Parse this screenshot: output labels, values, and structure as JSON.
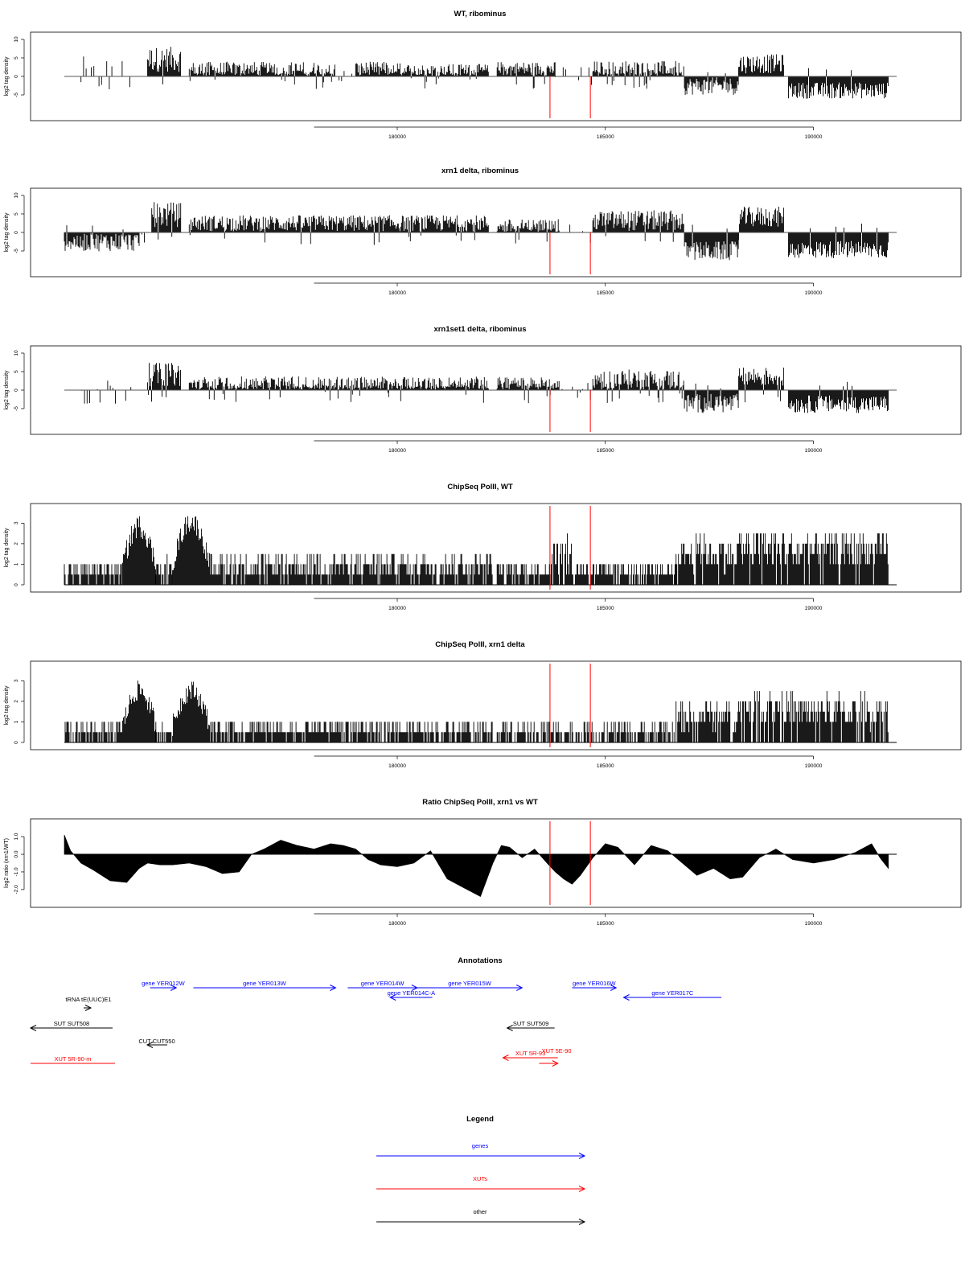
{
  "chart_data": [
    {
      "type": "bar",
      "title": "WT, ribominus",
      "ylabel": "log2 tag density",
      "xlim": [
        172000,
        192000
      ],
      "ylim": [
        -10,
        10
      ],
      "yticks": [
        "-5",
        "0",
        "5",
        "10"
      ],
      "xticks": [
        180000,
        185000,
        190000
      ],
      "xtick_labels": [
        "180000",
        "185000",
        "190000"
      ],
      "grid": false,
      "marker_lines_x": [
        183670,
        184640
      ],
      "marker_color": "#ff0000",
      "segments": [
        {
          "x": [
            172400,
            173800
          ],
          "kind": "sparse",
          "avg": 0.4,
          "amp": 5.0
        },
        {
          "x": [
            174000,
            174800
          ],
          "kind": "pos",
          "avg": 4.6,
          "amp": 3.4
        },
        {
          "x": [
            175000,
            178500
          ],
          "kind": "pos",
          "avg": 1.6,
          "amp": 2.4
        },
        {
          "x": [
            178600,
            179000
          ],
          "kind": "sparse",
          "avg": 0.3,
          "amp": 2.0
        },
        {
          "x": [
            179000,
            180200
          ],
          "kind": "pos",
          "avg": 1.8,
          "amp": 2.2
        },
        {
          "x": [
            180200,
            182200
          ],
          "kind": "pos",
          "avg": 1.4,
          "amp": 2.0
        },
        {
          "x": [
            182400,
            183800
          ],
          "kind": "pos",
          "avg": 2.0,
          "amp": 2.0
        },
        {
          "x": [
            183800,
            184700
          ],
          "kind": "sparse",
          "avg": 0.2,
          "amp": 3.0
        },
        {
          "x": [
            184700,
            186900
          ],
          "kind": "pos",
          "avg": 1.8,
          "amp": 2.4
        },
        {
          "x": [
            186900,
            188200
          ],
          "kind": "neg",
          "avg": -2.6,
          "amp": 2.4
        },
        {
          "x": [
            188200,
            189300
          ],
          "kind": "pos",
          "avg": 3.4,
          "amp": 2.6
        },
        {
          "x": [
            189400,
            191800
          ],
          "kind": "neg",
          "avg": -3.8,
          "amp": 2.2
        }
      ]
    },
    {
      "type": "bar",
      "title": "xrn1 delta, ribominus",
      "ylabel": "log2 tag density",
      "xlim": [
        172000,
        192000
      ],
      "ylim": [
        -10,
        10
      ],
      "yticks": [
        "-5",
        "0",
        "5",
        "10"
      ],
      "xticks": [
        180000,
        185000,
        190000
      ],
      "xtick_labels": [
        "180000",
        "185000",
        "190000"
      ],
      "grid": false,
      "marker_lines_x": [
        183670,
        184640
      ],
      "marker_color": "#ff0000",
      "segments": [
        {
          "x": [
            172000,
            173800
          ],
          "kind": "neg",
          "avg": -2.5,
          "amp": 2.6
        },
        {
          "x": [
            173800,
            174100
          ],
          "kind": "sparse",
          "avg": 0.5,
          "amp": 5.0
        },
        {
          "x": [
            174100,
            174800
          ],
          "kind": "pos",
          "avg": 4.8,
          "amp": 3.4
        },
        {
          "x": [
            175000,
            182200
          ],
          "kind": "pos",
          "avg": 2.5,
          "amp": 2.2
        },
        {
          "x": [
            182400,
            183900
          ],
          "kind": "pos",
          "avg": 1.6,
          "amp": 2.0
        },
        {
          "x": [
            183900,
            184700
          ],
          "kind": "sparse",
          "avg": -0.3,
          "amp": 4.0
        },
        {
          "x": [
            184700,
            186900
          ],
          "kind": "pos",
          "avg": 3.2,
          "amp": 2.8
        },
        {
          "x": [
            186900,
            188200
          ],
          "kind": "neg",
          "avg": -5.0,
          "amp": 2.6
        },
        {
          "x": [
            188200,
            189300
          ],
          "kind": "pos",
          "avg": 4.2,
          "amp": 2.8
        },
        {
          "x": [
            189400,
            191800
          ],
          "kind": "neg",
          "avg": -4.6,
          "amp": 2.4
        }
      ]
    },
    {
      "type": "bar",
      "title": "xrn1set1 delta, ribominus",
      "ylabel": "log2 tag density",
      "xlim": [
        172000,
        192000
      ],
      "ylim": [
        -10,
        10
      ],
      "yticks": [
        "-5",
        "0",
        "5",
        "10"
      ],
      "xticks": [
        180000,
        185000,
        190000
      ],
      "xtick_labels": [
        "180000",
        "185000",
        "190000"
      ],
      "grid": false,
      "marker_lines_x": [
        183670,
        184640
      ],
      "marker_color": "#ff0000",
      "segments": [
        {
          "x": [
            172300,
            173800
          ],
          "kind": "sparse",
          "avg": -0.5,
          "amp": 4.0
        },
        {
          "x": [
            174000,
            174800
          ],
          "kind": "pos",
          "avg": 4.2,
          "amp": 3.2
        },
        {
          "x": [
            175000,
            182200
          ],
          "kind": "pos",
          "avg": 1.5,
          "amp": 2.2
        },
        {
          "x": [
            182400,
            183900
          ],
          "kind": "pos",
          "avg": 1.6,
          "amp": 2.0
        },
        {
          "x": [
            183900,
            184700
          ],
          "kind": "sparse",
          "avg": 0.2,
          "amp": 3.0
        },
        {
          "x": [
            184700,
            186900
          ],
          "kind": "pos",
          "avg": 2.8,
          "amp": 2.8
        },
        {
          "x": [
            186900,
            188200
          ],
          "kind": "neg",
          "avg": -3.6,
          "amp": 2.6
        },
        {
          "x": [
            188200,
            189300
          ],
          "kind": "pos",
          "avg": 3.6,
          "amp": 2.6
        },
        {
          "x": [
            189400,
            191800
          ],
          "kind": "neg",
          "avg": -3.8,
          "amp": 2.4
        }
      ]
    },
    {
      "type": "bar",
      "title": "ChipSeq PolII, WT",
      "ylabel": "log2 tag density",
      "xlim": [
        172000,
        192000
      ],
      "ylim": [
        0,
        3.6
      ],
      "yticks": [
        "0",
        "1",
        "2",
        "3"
      ],
      "xticks": [
        180000,
        185000,
        190000
      ],
      "xtick_labels": [
        "180000",
        "185000",
        "190000"
      ],
      "grid": false,
      "marker_lines_x": [
        183670,
        184640
      ],
      "marker_color": "#ff0000",
      "segments": [
        {
          "x": [
            172000,
            173400
          ],
          "kind": "chip",
          "avg": 0.4,
          "amp": 1.2
        },
        {
          "x": [
            173400,
            174200
          ],
          "kind": "chippeak",
          "avg": 2.6,
          "amp": 1.1
        },
        {
          "x": [
            174200,
            174600
          ],
          "kind": "chip",
          "avg": 0.6,
          "amp": 1.2
        },
        {
          "x": [
            174600,
            175500
          ],
          "kind": "chippeak",
          "avg": 2.8,
          "amp": 1.0
        },
        {
          "x": [
            175500,
            182300
          ],
          "kind": "chip",
          "avg": 0.7,
          "amp": 1.2
        },
        {
          "x": [
            182400,
            183700
          ],
          "kind": "chip",
          "avg": 0.5,
          "amp": 1.0
        },
        {
          "x": [
            183700,
            184200
          ],
          "kind": "chip",
          "avg": 1.0,
          "amp": 2.0
        },
        {
          "x": [
            184200,
            186700
          ],
          "kind": "chip",
          "avg": 0.5,
          "amp": 1.0
        },
        {
          "x": [
            186700,
            188200
          ],
          "kind": "chip",
          "avg": 1.2,
          "amp": 1.6
        },
        {
          "x": [
            188200,
            189300
          ],
          "kind": "chip",
          "avg": 1.4,
          "amp": 1.8
        },
        {
          "x": [
            189300,
            191800
          ],
          "kind": "chip",
          "avg": 1.3,
          "amp": 1.8
        }
      ]
    },
    {
      "type": "bar",
      "title": "ChipSeq PolII, xrn1 delta",
      "ylabel": "log2 tag density",
      "xlim": [
        172000,
        192000
      ],
      "ylim": [
        0,
        3.6
      ],
      "yticks": [
        "0",
        "1",
        "2",
        "3"
      ],
      "xticks": [
        180000,
        185000,
        190000
      ],
      "xtick_labels": [
        "180000",
        "185000",
        "190000"
      ],
      "grid": false,
      "marker_lines_x": [
        183670,
        184640
      ],
      "marker_color": "#ff0000",
      "segments": [
        {
          "x": [
            172000,
            173400
          ],
          "kind": "chip",
          "avg": 0.3,
          "amp": 1.0
        },
        {
          "x": [
            173400,
            174200
          ],
          "kind": "chippeak",
          "avg": 2.3,
          "amp": 1.0
        },
        {
          "x": [
            174200,
            174600
          ],
          "kind": "chip",
          "avg": 0.4,
          "amp": 0.8
        },
        {
          "x": [
            174600,
            175500
          ],
          "kind": "chippeak",
          "avg": 2.3,
          "amp": 1.0
        },
        {
          "x": [
            175500,
            182300
          ],
          "kind": "chip",
          "avg": 0.5,
          "amp": 1.0
        },
        {
          "x": [
            182400,
            186700
          ],
          "kind": "chip",
          "avg": 0.3,
          "amp": 1.0
        },
        {
          "x": [
            186700,
            188200
          ],
          "kind": "chip",
          "avg": 1.0,
          "amp": 1.4
        },
        {
          "x": [
            188200,
            189300
          ],
          "kind": "chip",
          "avg": 1.4,
          "amp": 1.6
        },
        {
          "x": [
            189300,
            191800
          ],
          "kind": "chip",
          "avg": 1.2,
          "amp": 1.6
        }
      ]
    },
    {
      "type": "area",
      "title": "Ratio ChipSeq PolII, xrn1 vs WT",
      "ylabel": "log2 ratio (xrn1/WT)",
      "xlim": [
        172000,
        192000
      ],
      "ylim": [
        -2.6,
        1.6
      ],
      "yticks": [
        "-2.0",
        "-1.0",
        "0.0",
        "1.0"
      ],
      "xticks": [
        180000,
        185000,
        190000
      ],
      "xtick_labels": [
        "180000",
        "185000",
        "190000"
      ],
      "grid": false,
      "marker_lines_x": [
        183670,
        184640
      ],
      "marker_color": "#ff0000",
      "x": [
        172000,
        172150,
        172400,
        172700,
        173100,
        173500,
        173800,
        174000,
        174300,
        174600,
        175000,
        175400,
        175800,
        176200,
        176500,
        176800,
        177200,
        177600,
        178000,
        178400,
        178700,
        179000,
        179300,
        179600,
        180000,
        180400,
        180800,
        181200,
        181600,
        182000,
        182300,
        182500,
        182700,
        183000,
        183300,
        183600,
        183800,
        184000,
        184200,
        184400,
        184700,
        185000,
        185300,
        185700,
        186100,
        186500,
        186900,
        187200,
        187600,
        188000,
        188300,
        188700,
        189100,
        189500,
        190000,
        190500,
        191000,
        191400,
        191600,
        191800
      ],
      "values": [
        1.1,
        0.2,
        -0.5,
        -0.9,
        -1.5,
        -1.6,
        -0.8,
        -0.5,
        -0.6,
        -0.6,
        -0.5,
        -0.7,
        -1.1,
        -1.0,
        0.0,
        0.3,
        0.8,
        0.5,
        0.3,
        0.6,
        0.5,
        0.3,
        -0.3,
        -0.6,
        -0.7,
        -0.5,
        0.2,
        -1.4,
        -1.9,
        -2.4,
        -0.5,
        0.5,
        0.4,
        -0.2,
        0.3,
        -0.5,
        -1.0,
        -1.4,
        -1.7,
        -1.2,
        -0.2,
        0.6,
        0.4,
        -0.6,
        0.5,
        0.2,
        -0.6,
        -1.2,
        -0.8,
        -1.4,
        -1.3,
        -0.2,
        0.3,
        -0.3,
        -0.5,
        -0.3,
        0.1,
        0.6,
        -0.2,
        -0.8
      ]
    }
  ],
  "annotations": {
    "title": "Annotations",
    "xlim": [
      172000,
      192000
    ],
    "items": [
      {
        "label": "gene YER012W",
        "x1": 174060,
        "x2": 174690,
        "row": 0,
        "dir": "right",
        "cat": "genes"
      },
      {
        "label": "gene YER013W",
        "x1": 175100,
        "x2": 178520,
        "row": 0,
        "dir": "right",
        "cat": "genes"
      },
      {
        "label": "gene YER014W",
        "x1": 178810,
        "x2": 180480,
        "row": 0,
        "dir": "right",
        "cat": "genes"
      },
      {
        "label": "gene YER014C-A",
        "x1": 179830,
        "x2": 180840,
        "row": 1,
        "dir": "left",
        "cat": "genes"
      },
      {
        "label": "gene YER015W",
        "x1": 180480,
        "x2": 183000,
        "row": 0,
        "dir": "right",
        "cat": "genes"
      },
      {
        "label": "gene YER016W",
        "x1": 184200,
        "x2": 185260,
        "row": 0,
        "dir": "right",
        "cat": "genes"
      },
      {
        "label": "gene YER017C",
        "x1": 185440,
        "x2": 187790,
        "row": 1,
        "dir": "left",
        "cat": "genes"
      },
      {
        "label": "tRNA tE(UUC)E1",
        "x1": 172370,
        "x2": 172440,
        "row": 2,
        "dir": "right",
        "cat": "other"
      },
      {
        "label": "SUT SUT508",
        "x1": 171000,
        "x2": 172950,
        "row": 3,
        "dir": "left",
        "cat": "other"
      },
      {
        "label": "SUT SUT509",
        "x1": 182640,
        "x2": 183780,
        "row": 3,
        "dir": "left",
        "cat": "other"
      },
      {
        "label": "CUT CUT550",
        "x1": 173640,
        "x2": 174020,
        "row": 4,
        "dir": "left",
        "cat": "other"
      },
      {
        "label": "XUT 5R-90-m",
        "x1": 171000,
        "x2": 172950,
        "row": 5,
        "dir": "none",
        "cat": "XUTs"
      },
      {
        "label": "XUT 5E-90",
        "x1": 183410,
        "x2": 183860,
        "row": 5,
        "dir": "right",
        "cat": "XUTs"
      },
      {
        "label": "XUT 5R-93",
        "x1": 182540,
        "x2": 183860,
        "row": 6,
        "dir": "left",
        "cat": "XUTs"
      }
    ]
  },
  "legend": {
    "title": "Legend",
    "entries": [
      {
        "label": "genes",
        "color": "#0000ff"
      },
      {
        "label": "XUTs",
        "color": "#ff0000"
      },
      {
        "label": "other",
        "color": "#000000"
      }
    ]
  },
  "colors": {
    "genes": "#0000ff",
    "XUTs": "#ff0000",
    "other": "#000000",
    "marker": "#ff0000"
  }
}
